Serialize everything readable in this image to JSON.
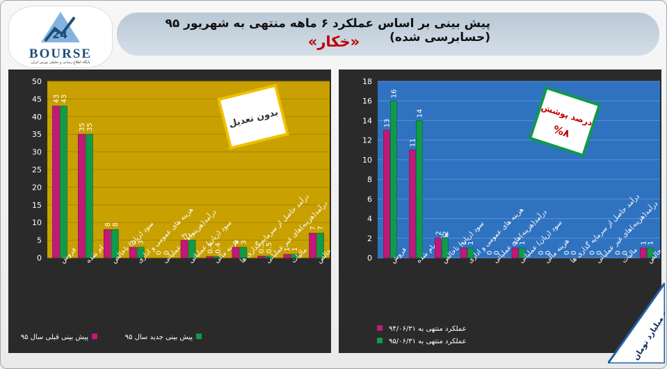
{
  "header": {
    "title": "پیش بینی بر اساس عملکرد ۶ ماهه منتهی به شهریور ۹۵ (حسابرسی شده)",
    "subtitle": "«خکار»"
  },
  "logo": {
    "wordmark": "BOURSE",
    "tagline": "پایگاه اطلاع رسانی و تحلیلی بورس ایران"
  },
  "corner_note": "ارقام به میلیارد تومان",
  "colors": {
    "magenta": "#c2187a",
    "green": "#109a4a",
    "gold_bg": "#c8a000",
    "blue_bg": "#2f72c0"
  },
  "chart_data": [
    {
      "type": "bar",
      "categories": [
        "فروش",
        "بهای تمام شده",
        "سود (زیان) ناخالص",
        "هزینه های عمومی و اداری",
        "درآمد(هزینه)های عملیاتی",
        "سود (زیان) عملیاتی",
        "هزینه مالی",
        "درآمد حاصل از سرمایه گذاری ها",
        "درآمد(هزینه)های غیر عملیاتی",
        "مالیات",
        "سود خالص"
      ],
      "series": [
        {
          "name": "پیش بینی قبلی سال ۹۵",
          "values": [
            43,
            35,
            8,
            3,
            0,
            5,
            0.4,
            3,
            0.5,
            1,
            7
          ],
          "labels": [
            "43",
            "35",
            "8",
            "3",
            "0",
            "5",
            "0.4",
            "3",
            "0.5",
            "1",
            "7"
          ]
        },
        {
          "name": "پیش بینی جدید سال ۹۵",
          "values": [
            43,
            35,
            8,
            3,
            0,
            5,
            0.4,
            3,
            0.5,
            1,
            7
          ],
          "labels": [
            "43",
            "35",
            "8",
            "3",
            "0",
            "5",
            "0.4",
            "3",
            "0.5",
            "1",
            "7"
          ]
        }
      ],
      "yticks": [
        0,
        5,
        10,
        15,
        20,
        25,
        30,
        35,
        40,
        45,
        50
      ],
      "ylim": [
        0,
        50
      ],
      "badge": "بدون تعدیل",
      "legend_position": "bottom"
    },
    {
      "type": "bar",
      "categories": [
        "فروش",
        "بهای تمام شده",
        "سود (زیان) ناخالص",
        "هزینه های عمومی و اداری",
        "درآمد(هزینه)های عملیاتی",
        "سود (زیان) عملیاتی",
        "هزینه مالی",
        "درآمد حاصل از سرمایه گذاری ها",
        "درآمد(هزینه)های غیر عملیاتی",
        "مالیات",
        "سود خالص"
      ],
      "series": [
        {
          "name": "عملکرد منتهی به ۹۴/۰۶/۳۱",
          "values": [
            13,
            11,
            2,
            1,
            0,
            1,
            0,
            0,
            0,
            0,
            1
          ],
          "labels": [
            "13",
            "11",
            "2",
            "1",
            "0",
            "1",
            "0",
            "0",
            "0",
            "0",
            "1"
          ]
        },
        {
          "name": "عملکرد منتهی به ۹۵/۰۶/۳۱",
          "values": [
            16,
            14,
            2,
            1,
            0,
            1,
            0,
            0,
            0,
            0,
            1
          ],
          "labels": [
            "16",
            "14",
            "2",
            "1",
            "0",
            "1",
            "0",
            "0",
            "0",
            "0",
            "1"
          ]
        }
      ],
      "yticks": [
        0,
        2,
        4,
        6,
        8,
        10,
        12,
        14,
        16,
        18
      ],
      "ylim": [
        0,
        18
      ],
      "badge_title": "درصد پوشش",
      "badge_value": "%۸",
      "legend_position": "bottom"
    }
  ]
}
